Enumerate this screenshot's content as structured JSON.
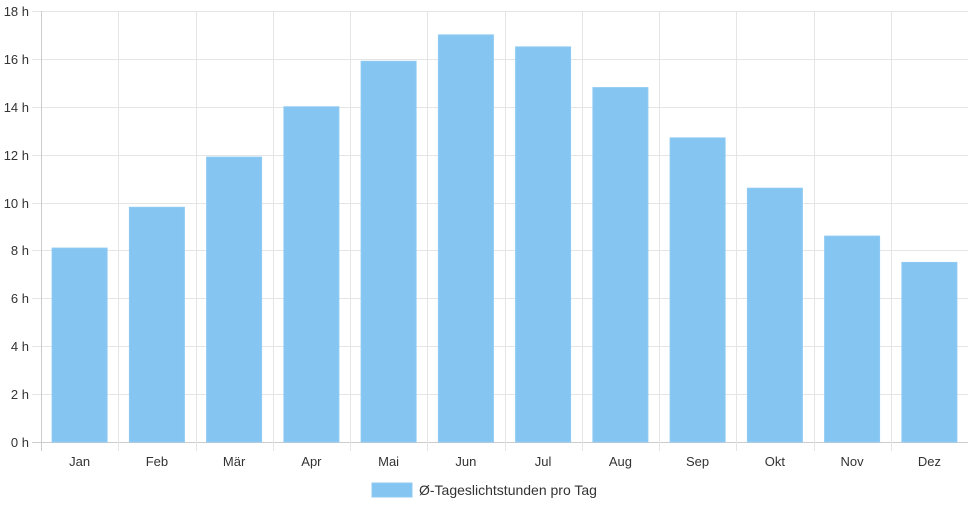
{
  "chart_data": {
    "type": "bar",
    "categories": [
      "Jan",
      "Feb",
      "Mär",
      "Apr",
      "Mai",
      "Jun",
      "Jul",
      "Aug",
      "Sep",
      "Okt",
      "Nov",
      "Dez"
    ],
    "series": [
      {
        "name": "Ø-Tageslichtstunden pro Tag",
        "values": [
          8.1,
          9.8,
          11.9,
          14.0,
          15.9,
          17.0,
          16.5,
          14.8,
          12.7,
          10.6,
          8.6,
          7.5
        ]
      }
    ],
    "ylim": [
      0,
      18
    ],
    "ytick_step": 2,
    "ytick_suffix": " h",
    "grid": true,
    "legend_position": "bottom",
    "colors": {
      "bar": "#85c5f2",
      "bar_edge": "#8fcaf3",
      "grid": "#e5e5e5",
      "axis": "#cccccc",
      "text": "#333333"
    }
  }
}
